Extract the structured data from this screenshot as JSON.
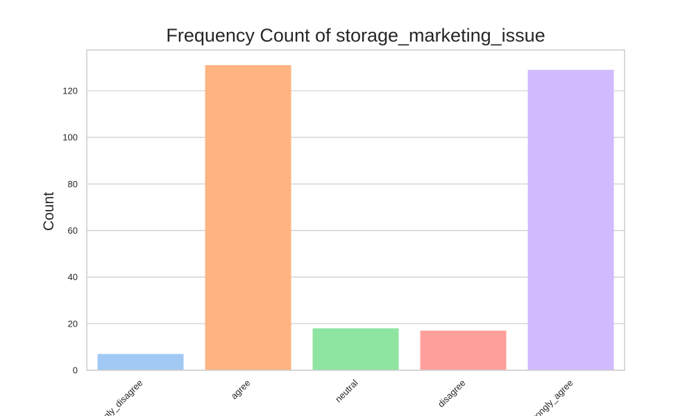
{
  "chart_data": {
    "type": "bar",
    "title": "Frequency Count of storage_marketing_issue",
    "xlabel": "",
    "ylabel": "Count",
    "categories": [
      "strongly_disagree",
      "agree",
      "neutral",
      "disagree",
      "strongly_agree"
    ],
    "values": [
      7,
      131,
      18,
      17,
      129
    ],
    "colors": [
      "#a1c9f4",
      "#ffb482",
      "#8de5a1",
      "#ff9f9b",
      "#d0bbff"
    ],
    "ylim": [
      0,
      137.55
    ],
    "yticks": [
      0,
      20,
      40,
      60,
      80,
      100,
      120
    ],
    "grid": true,
    "legend": "none"
  }
}
